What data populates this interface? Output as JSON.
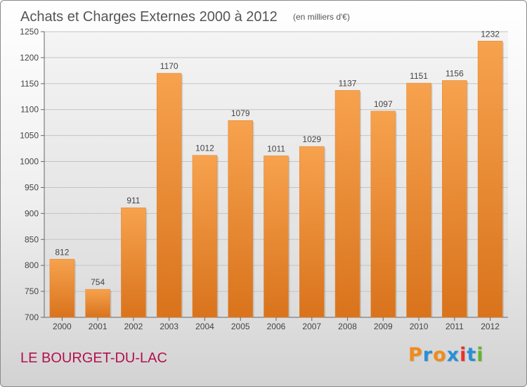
{
  "chart_data": {
    "type": "bar",
    "title": "Achats et Charges Externes 2000 à 2012",
    "subtitle": "(en milliers d'€)",
    "categories": [
      "2000",
      "2001",
      "2002",
      "2003",
      "2004",
      "2005",
      "2006",
      "2007",
      "2008",
      "2009",
      "2010",
      "2011",
      "2012"
    ],
    "values": [
      812,
      754,
      911,
      1170,
      1012,
      1079,
      1011,
      1029,
      1137,
      1097,
      1151,
      1156,
      1232
    ],
    "ylim": [
      700,
      1250
    ],
    "yticks": [
      700,
      750,
      800,
      850,
      900,
      950,
      1000,
      1050,
      1100,
      1150,
      1200,
      1250
    ],
    "grid": true,
    "bar_color_top": "#f7a24e",
    "bar_color_bottom": "#d9731c"
  },
  "footer": {
    "location": "LE BOURGET-DU-LAC",
    "location_color": "#b2124e",
    "brand_letters": [
      "P",
      "r",
      "o",
      "x",
      "i",
      "t",
      "i"
    ],
    "brand_colors": [
      "#f08c1a",
      "#2a8fd6",
      "#f08c1a",
      "#2a8fd6",
      "#e8322a",
      "#2a8fd6",
      "#64b32e"
    ]
  }
}
